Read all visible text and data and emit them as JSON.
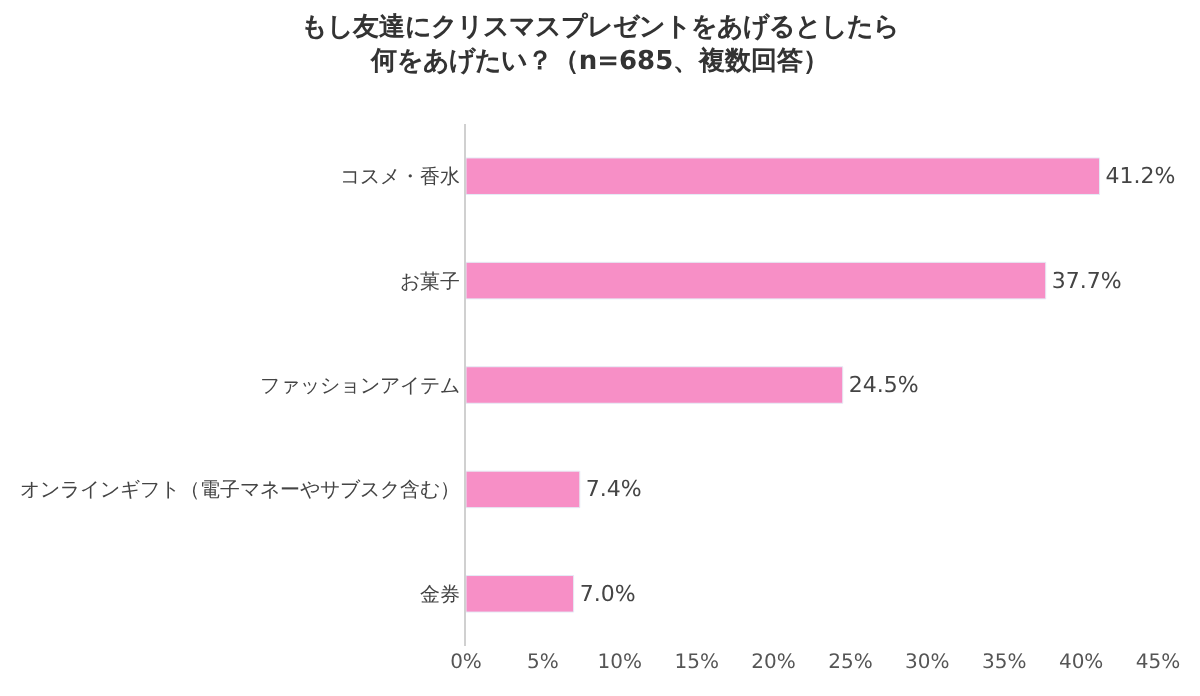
{
  "chart_data": {
    "type": "bar",
    "orientation": "horizontal",
    "title": "もし友達にクリスマスプレゼントをあげるとしたら何をあげたい？（n=685、複数回答）",
    "categories": [
      "コスメ・香水",
      "お菓子",
      "ファッションアイテム",
      "オンラインギフト（電子マネーやサブスク含む）",
      "金券"
    ],
    "values": [
      41.2,
      37.7,
      24.5,
      7.4,
      7.0
    ],
    "value_labels": [
      "41.2%",
      "37.7%",
      "24.5%",
      "7.4%",
      "7.0%"
    ],
    "color": "#f78fc6",
    "xlim": [
      0,
      45
    ],
    "xticks": [
      {
        "value": 0,
        "label": "0%"
      },
      {
        "value": 5,
        "label": "5%"
      },
      {
        "value": 10,
        "label": "10%"
      },
      {
        "value": 15,
        "label": "15%"
      },
      {
        "value": 20,
        "label": "20%"
      },
      {
        "value": 25,
        "label": "25%"
      },
      {
        "value": 30,
        "label": "30%"
      },
      {
        "value": 35,
        "label": "35%"
      },
      {
        "value": 40,
        "label": "40%"
      },
      {
        "value": 45,
        "label": "45%"
      }
    ],
    "legend": false
  }
}
